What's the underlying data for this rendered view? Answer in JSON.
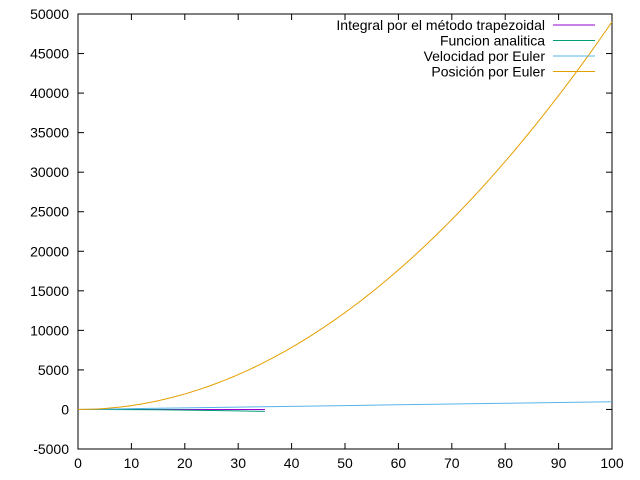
{
  "chart_data": {
    "type": "line",
    "title": "",
    "xlabel": "",
    "ylabel": "",
    "xlim": [
      0,
      100
    ],
    "ylim": [
      -5000,
      50000
    ],
    "x_ticks": [
      0,
      10,
      20,
      30,
      40,
      50,
      60,
      70,
      80,
      90,
      100
    ],
    "y_ticks": [
      -5000,
      0,
      5000,
      10000,
      15000,
      20000,
      25000,
      30000,
      35000,
      40000,
      45000,
      50000
    ],
    "grid": false,
    "legend_position": "top-right",
    "series": [
      {
        "name": "Integral por el método trapezoidal",
        "color": "#9400d3",
        "x": [
          0,
          35
        ],
        "y": [
          0,
          0
        ]
      },
      {
        "name": "Funcion analitica",
        "color": "#009e73",
        "x": [
          0,
          5,
          10,
          15,
          20,
          25,
          30,
          35
        ],
        "y": [
          0,
          -5,
          -20,
          -45,
          -80,
          -125,
          -180,
          -245
        ]
      },
      {
        "name": "Velocidad por Euler",
        "color": "#56b4e9",
        "x": [
          0,
          10,
          20,
          30,
          40,
          50,
          60,
          70,
          80,
          90,
          100
        ],
        "y": [
          0,
          98,
          196,
          294,
          392,
          490,
          588,
          686,
          784,
          882,
          980
        ]
      },
      {
        "name": "Posición por Euler",
        "color": "#e69f00",
        "x": [
          0,
          10,
          20,
          30,
          40,
          50,
          60,
          70,
          80,
          90,
          100
        ],
        "y": [
          0,
          490,
          1960,
          4410,
          7840,
          12250,
          17640,
          24010,
          31360,
          39690,
          49000
        ]
      }
    ]
  }
}
